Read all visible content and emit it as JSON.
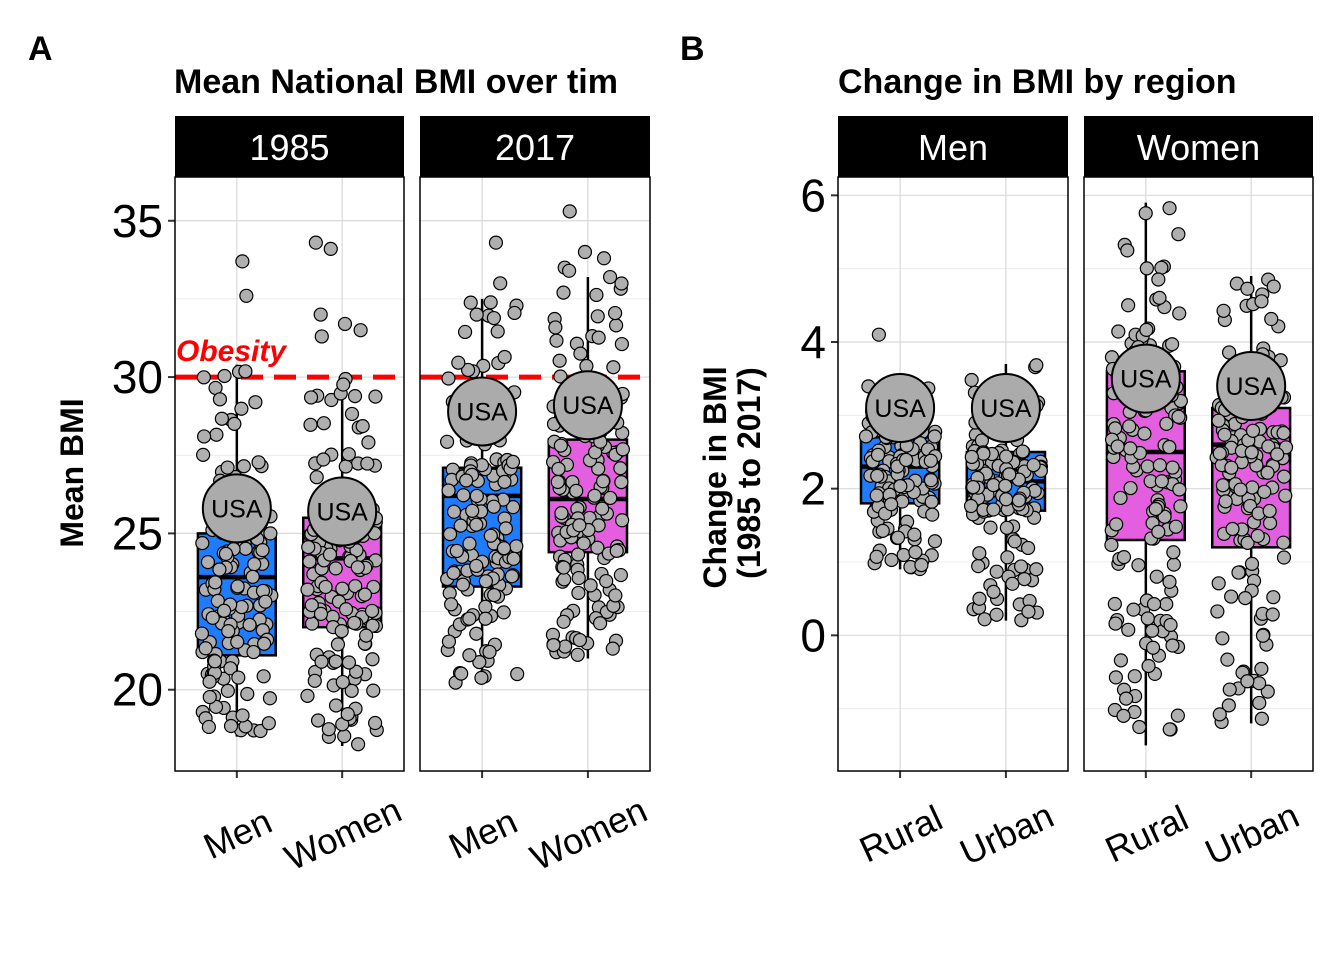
{
  "colors": {
    "men_box": "#1E7CFF",
    "women_box": "#E45EE0",
    "point": "#AFAFAF",
    "usa_point": "#ABABAB",
    "strip": "#000000",
    "reference_line": "#FF0000",
    "grid": "#D9D9D9"
  },
  "chart_data": [
    {
      "type": "box",
      "panel_letter": "A",
      "title": "Mean National BMI over tim",
      "ylabel": "Mean BMI",
      "ylim": [
        17.4,
        36.4
      ],
      "yticks": [
        20,
        25,
        30,
        35
      ],
      "yminor": [
        22.5,
        27.5,
        32.5
      ],
      "reference_line": {
        "value": 30,
        "label": "Obesity"
      },
      "point_label": "USA",
      "facets": [
        {
          "strip": "1985",
          "categories": [
            "Men",
            "Women"
          ],
          "boxes": [
            {
              "category": "Men",
              "fill": "men",
              "q1": 21.1,
              "median": 23.6,
              "q3": 25.0,
              "whisker_low": 18.5,
              "whisker_high": 30.4,
              "usa": 25.8,
              "outliers": [
                33.7,
                32.6
              ]
            },
            {
              "category": "Women",
              "fill": "women",
              "q1": 22.0,
              "median": 24.2,
              "q3": 25.5,
              "whisker_low": 18.2,
              "whisker_high": 30.0,
              "usa": 25.7,
              "outliers": [
                34.3,
                34.1,
                32.0,
                31.7,
                31.5,
                31.3
              ]
            }
          ]
        },
        {
          "strip": "2017",
          "categories": [
            "Men",
            "Women"
          ],
          "boxes": [
            {
              "category": "Men",
              "fill": "men",
              "q1": 23.3,
              "median": 26.2,
              "q3": 27.1,
              "whisker_low": 20.2,
              "whisker_high": 32.5,
              "usa": 28.9,
              "outliers": [
                34.3,
                33.0
              ]
            },
            {
              "category": "Women",
              "fill": "women",
              "q1": 24.4,
              "median": 26.1,
              "q3": 28.0,
              "whisker_low": 21.0,
              "whisker_high": 33.2,
              "usa": 29.1,
              "outliers": [
                35.3,
                34.0,
                33.8,
                33.5,
                33.4,
                33.2
              ]
            }
          ]
        }
      ]
    },
    {
      "type": "box",
      "panel_letter": "B",
      "title": "Change in BMI by region",
      "ylabel": "Change in BMI\n(1985 to 2017)",
      "ylabel_lines": [
        "Change in BMI",
        "(1985 to 2017)"
      ],
      "ylim": [
        -1.85,
        6.25
      ],
      "yticks": [
        0,
        2,
        4,
        6
      ],
      "yminor": [
        -1,
        1,
        3,
        5
      ],
      "point_label": "USA",
      "facets": [
        {
          "strip": "Men",
          "categories": [
            "Rural",
            "Urban"
          ],
          "boxes": [
            {
              "category": "Rural",
              "fill": "men",
              "q1": 1.8,
              "median": 2.3,
              "q3": 2.7,
              "whisker_low": 0.9,
              "whisker_high": 3.4,
              "usa": 3.1,
              "outliers": [
                4.1
              ]
            },
            {
              "category": "Urban",
              "fill": "men",
              "q1": 1.7,
              "median": 2.1,
              "q3": 2.5,
              "whisker_low": 0.2,
              "whisker_high": 3.7,
              "usa": 3.1,
              "outliers": []
            }
          ]
        },
        {
          "strip": "Women",
          "categories": [
            "Rural",
            "Urban"
          ],
          "boxes": [
            {
              "category": "Rural",
              "fill": "women",
              "q1": 1.3,
              "median": 2.5,
              "q3": 3.6,
              "whisker_low": -1.5,
              "whisker_high": 5.9,
              "usa": 3.5,
              "outliers": []
            },
            {
              "category": "Urban",
              "fill": "women",
              "q1": 1.2,
              "median": 2.6,
              "q3": 3.1,
              "whisker_low": -1.2,
              "whisker_high": 4.9,
              "usa": 3.4,
              "outliers": []
            }
          ]
        }
      ]
    }
  ]
}
